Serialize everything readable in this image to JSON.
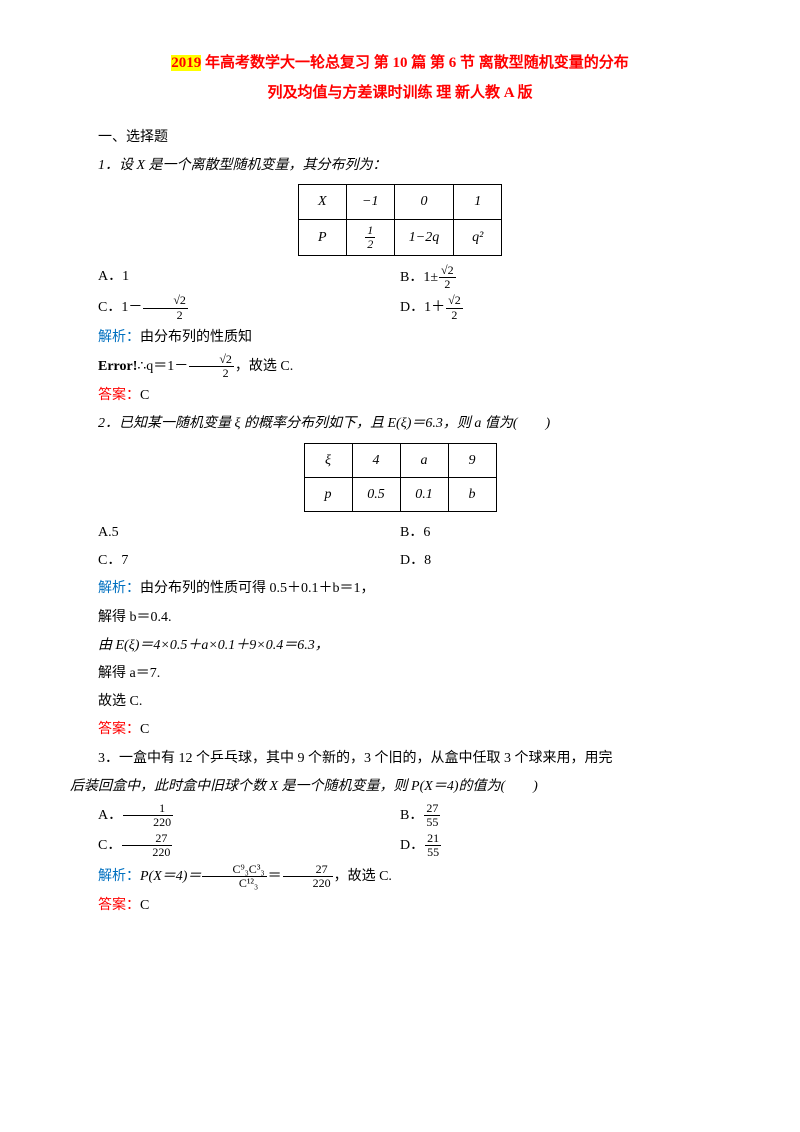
{
  "title": {
    "line1_hl": "2019",
    "line1_rest": " 年高考数学大一轮总复习 第 10 篇 第 6 节 离散型随机变量的分布",
    "line2": "列及均值与方差课时训练 理 新人教 A 版"
  },
  "sect1": "一、选择题",
  "q1": {
    "stem": "1．设 X 是一个离散型随机变量，其分布列为：",
    "table": {
      "row1": [
        "X",
        "−1",
        "0",
        "1"
      ],
      "row2_label": "P",
      "row2_c1_num": "1",
      "row2_c1_den": "2",
      "row2_c2": "1−2q",
      "row2_c3": "q²"
    },
    "optA": "A．1",
    "optB_pre": "B．1±",
    "optB_num": "√2",
    "optB_den": "2",
    "optC_pre": "C．1－",
    "optC_num": "√2",
    "optC_den": "2",
    "optD_pre": "D．1＋",
    "optD_num": "√2",
    "optD_den": "2",
    "analysis_label": "解析：",
    "analysis_text": "由分布列的性质知",
    "error_bold": "Error!",
    "error_text_pre": "∴q＝1－",
    "error_num": "√2",
    "error_den": "2",
    "error_text_post": "，故选 C.",
    "answer_label": "答案：",
    "answer_val": "C"
  },
  "q2": {
    "stem": "2．已知某一随机变量 ξ 的概率分布列如下，且 E(ξ)＝6.3，则 a 值为(　　)",
    "table": {
      "row1": [
        "ξ",
        "4",
        "a",
        "9"
      ],
      "row2": [
        "p",
        "0.5",
        "0.1",
        "b"
      ]
    },
    "optA": "A.5",
    "optB": "B．6",
    "optC": "C．7",
    "optD": "D．8",
    "analysis_label": "解析：",
    "analysis_text": "由分布列的性质可得 0.5＋0.1＋b＝1，",
    "line2": "解得 b＝0.4.",
    "line3": "由 E(ξ)＝4×0.5＋a×0.1＋9×0.4＝6.3，",
    "line4": "解得 a＝7.",
    "line5": "故选 C.",
    "answer_label": "答案：",
    "answer_val": "C"
  },
  "q3": {
    "stem1": "3．一盒中有 12 个乒乓球，其中 9 个新的，3 个旧的，从盒中任取 3 个球来用，用完",
    "stem2": "后装回盒中，此时盒中旧球个数 X 是一个随机变量，则 P(X＝4)的值为(　　)",
    "optA_pre": "A．",
    "optA_num": "1",
    "optA_den": "220",
    "optB_pre": "B．",
    "optB_num": "27",
    "optB_den": "55",
    "optC_pre": "C．",
    "optC_num": "27",
    "optC_den": "220",
    "optD_pre": "D．",
    "optD_num": "21",
    "optD_den": "55",
    "analysis_label": "解析：",
    "analysis_pre": "P(X＝4)＝",
    "analysis_n1": "C⁹₃C³₃",
    "analysis_d1": "C¹²₃",
    "analysis_eq": "＝",
    "analysis_n2": "27",
    "analysis_d2": "220",
    "analysis_post": "，故选 C.",
    "answer_label": "答案：",
    "answer_val": "C"
  },
  "colors": {
    "highlight_bg": "#ffff00",
    "title_color": "#ff0000",
    "analysis_color": "#0070c0",
    "answer_color": "#ff0000",
    "text_color": "#000000",
    "bg_color": "#ffffff"
  }
}
